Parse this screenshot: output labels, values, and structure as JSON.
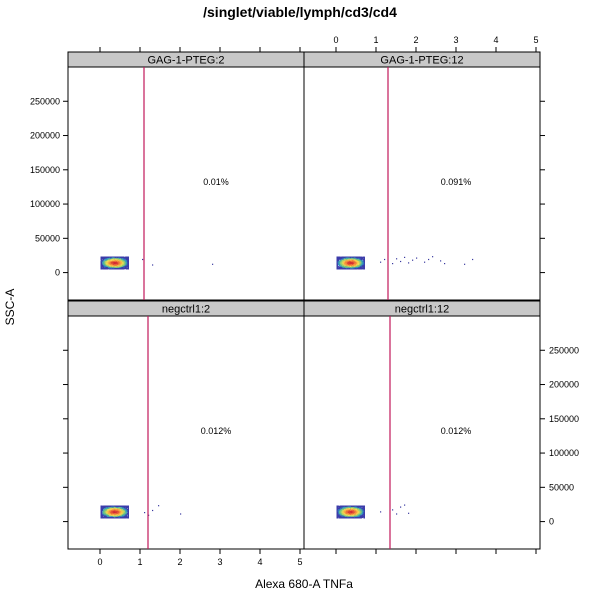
{
  "chart_data": {
    "type": "scatter",
    "title": "/singlet/viable/lymph/cd3/cd4",
    "xlabel": "Alexa 680-A TNFa",
    "ylabel": "SSC-A",
    "xlim": [
      -0.8,
      5.1
    ],
    "ylim": [
      -40000,
      300000
    ],
    "x_ticks": [
      0,
      1,
      2,
      3,
      4,
      5
    ],
    "y_ticks": [
      0,
      50000,
      100000,
      150000,
      200000,
      250000
    ],
    "panels": [
      {
        "label": "GAG-1-PTEG:2",
        "row": 0,
        "col": 0,
        "gate_x": 1.1,
        "percent": "0.01%",
        "pct_pos": {
          "x": 2.9,
          "y": 128000
        },
        "cluster": {
          "x_center": 0.35,
          "x_spread": 0.32,
          "y_center": 15000,
          "y_spread": 9000
        },
        "outliers": [
          [
            1.3,
            12000
          ],
          [
            2.8,
            13000
          ],
          [
            1.05,
            20000
          ]
        ]
      },
      {
        "label": "GAG-1-PTEG:12",
        "row": 0,
        "col": 1,
        "gate_x": 1.3,
        "percent": "0.091%",
        "pct_pos": {
          "x": 3.0,
          "y": 128000
        },
        "cluster": {
          "x_center": 0.35,
          "x_spread": 0.32,
          "y_center": 15000,
          "y_spread": 9000
        },
        "outliers": [
          [
            1.1,
            16000
          ],
          [
            1.2,
            20000
          ],
          [
            1.4,
            14000
          ],
          [
            1.5,
            21000
          ],
          [
            1.6,
            17000
          ],
          [
            1.7,
            23000
          ],
          [
            1.8,
            15000
          ],
          [
            1.9,
            19000
          ],
          [
            2.0,
            22000
          ],
          [
            2.2,
            16000
          ],
          [
            2.3,
            20000
          ],
          [
            2.4,
            24000
          ],
          [
            2.6,
            18000
          ],
          [
            2.7,
            14000
          ],
          [
            3.2,
            13000
          ],
          [
            3.4,
            20000
          ]
        ]
      },
      {
        "label": "negctrl1:2",
        "row": 1,
        "col": 0,
        "gate_x": 1.2,
        "percent": "0.012%",
        "pct_pos": {
          "x": 2.9,
          "y": 128000
        },
        "cluster": {
          "x_center": 0.35,
          "x_spread": 0.32,
          "y_center": 15000,
          "y_spread": 9000
        },
        "outliers": [
          [
            1.1,
            14000
          ],
          [
            1.3,
            17000
          ],
          [
            1.45,
            24000
          ],
          [
            1.2,
            10000
          ],
          [
            2.0,
            12000
          ]
        ]
      },
      {
        "label": "negctrl1:12",
        "row": 1,
        "col": 1,
        "gate_x": 1.35,
        "percent": "0.012%",
        "pct_pos": {
          "x": 3.0,
          "y": 128000
        },
        "cluster": {
          "x_center": 0.35,
          "x_spread": 0.32,
          "y_center": 15000,
          "y_spread": 9000
        },
        "outliers": [
          [
            1.1,
            15000
          ],
          [
            1.4,
            18000
          ],
          [
            1.6,
            22000
          ],
          [
            1.7,
            25000
          ],
          [
            1.8,
            13000
          ],
          [
            1.5,
            12000
          ]
        ]
      }
    ]
  }
}
